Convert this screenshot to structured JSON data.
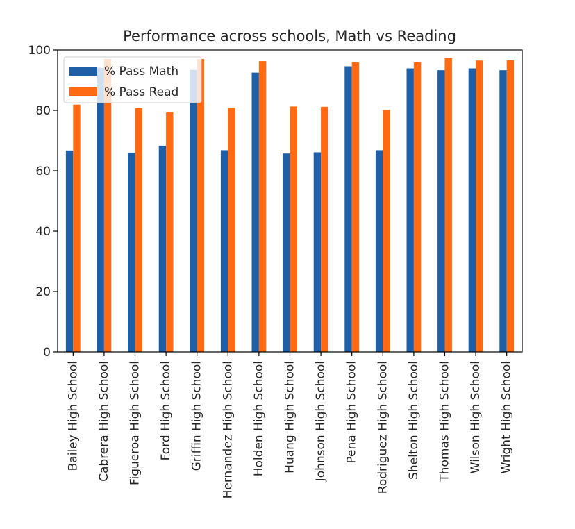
{
  "chart_data": {
    "type": "bar",
    "title": "Performance across schools, Math vs Reading",
    "xlabel": "",
    "ylabel": "",
    "ylim": [
      0,
      100
    ],
    "yticks": [
      0,
      20,
      40,
      60,
      80,
      100
    ],
    "categories": [
      "Bailey High School",
      "Cabrera High School",
      "Figueroa High School",
      "Ford High School",
      "Griffin High School",
      "Hernandez High School",
      "Holden High School",
      "Huang High School",
      "Johnson High School",
      "Pena High School",
      "Rodriguez High School",
      "Shelton High School",
      "Thomas High School",
      "Wilson High School",
      "Wright High School"
    ],
    "series": [
      {
        "name": "% Pass Math",
        "color": "#1f5fa8",
        "values": [
          66.7,
          94.1,
          66.0,
          68.3,
          93.4,
          66.8,
          92.5,
          65.7,
          66.1,
          94.6,
          66.8,
          93.9,
          93.3,
          93.9,
          93.3
        ]
      },
      {
        "name": "% Pass Read",
        "color": "#ff6a13",
        "values": [
          81.9,
          97.0,
          80.7,
          79.3,
          97.0,
          80.9,
          96.3,
          81.3,
          81.2,
          95.9,
          80.2,
          95.9,
          97.3,
          96.5,
          96.6
        ]
      }
    ],
    "legend": "top-left",
    "grid": false
  }
}
